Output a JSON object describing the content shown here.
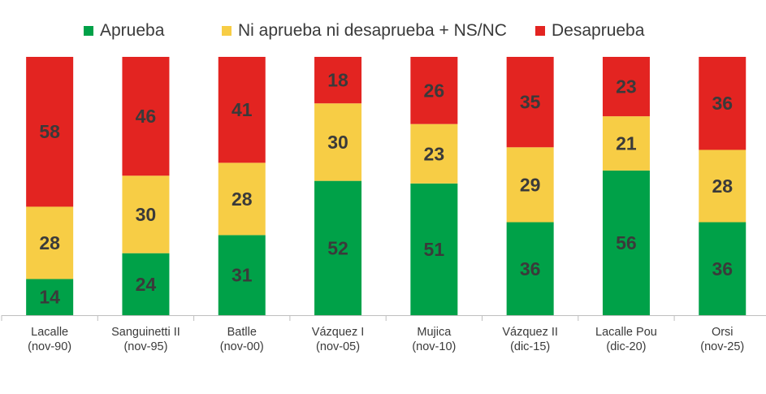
{
  "chart_data": {
    "type": "bar",
    "stacked": true,
    "percent_stacked": true,
    "categories": [
      [
        "Lacalle",
        "(nov-90)"
      ],
      [
        "Sanguinetti II",
        "(nov-95)"
      ],
      [
        "Batlle",
        "(nov-00)"
      ],
      [
        "Vázquez I",
        "(nov-05)"
      ],
      [
        "Mujica",
        "(nov-10)"
      ],
      [
        "Vázquez II",
        "(dic-15)"
      ],
      [
        "Lacalle Pou",
        "(dic-20)"
      ],
      [
        "Orsi",
        "(nov-25)"
      ]
    ],
    "series": [
      {
        "name": "Aprueba",
        "values": [
          14,
          24,
          31,
          52,
          51,
          36,
          56,
          36
        ]
      },
      {
        "name": "Ni aprueba ni desaprueba + NS/NC",
        "values": [
          28,
          30,
          28,
          30,
          23,
          29,
          21,
          28
        ]
      },
      {
        "name": "Desaprueba",
        "values": [
          58,
          46,
          41,
          18,
          26,
          35,
          23,
          36
        ]
      }
    ],
    "colors": {
      "Aprueba": "#00a148",
      "Ni aprueba ni desaprueba + NS/NC": "#f7cd45",
      "Desaprueba": "#e32421",
      "label_text": "#3a3a3a",
      "axis": "#bfbfbf"
    },
    "legend_position": "top-center",
    "grid": false,
    "data_labels": true,
    "title": "",
    "xlabel": "",
    "ylabel": ""
  }
}
